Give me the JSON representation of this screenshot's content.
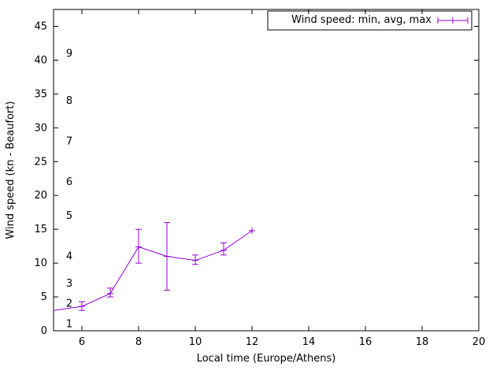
{
  "figure": {
    "background": "#ffffff",
    "axis_color": "#000000",
    "series_color": "#9400d3"
  },
  "legend": {
    "label": "Wind speed: min, avg, max"
  },
  "chart_data": {
    "type": "line",
    "title": "",
    "xlabel": "Local time (Europe/Athens)",
    "ylabel": "Wind speed (kn - Beaufort)",
    "xlim": [
      5,
      20
    ],
    "ylim": [
      0,
      47.5
    ],
    "x_ticks": [
      6,
      8,
      10,
      12,
      14,
      16,
      18,
      20
    ],
    "y_ticks": [
      0,
      5,
      10,
      15,
      20,
      25,
      30,
      35,
      40,
      45
    ],
    "beaufort_scale": [
      {
        "label": "1",
        "kn": 1
      },
      {
        "label": "2",
        "kn": 4
      },
      {
        "label": "3",
        "kn": 7
      },
      {
        "label": "4",
        "kn": 11
      },
      {
        "label": "5",
        "kn": 17
      },
      {
        "label": "6",
        "kn": 22
      },
      {
        "label": "7",
        "kn": 28
      },
      {
        "label": "8",
        "kn": 34
      },
      {
        "label": "9",
        "kn": 41
      }
    ],
    "grid": false,
    "legend_position": "top-right-inside-box",
    "series": [
      {
        "name": "Wind speed: min, avg, max",
        "color": "#9400d3",
        "style": "yerrorlines-plus-marker",
        "points": [
          {
            "t": 5,
            "avg": 3.0,
            "min": 3.0,
            "max": 3.0,
            "marker": false
          },
          {
            "t": 6,
            "avg": 3.6,
            "min": 3.0,
            "max": 4.3,
            "marker": true
          },
          {
            "t": 7,
            "avg": 5.5,
            "min": 5.0,
            "max": 6.3,
            "marker": true
          },
          {
            "t": 8,
            "avg": 12.4,
            "min": 10.0,
            "max": 15.0,
            "marker": true
          },
          {
            "t": 9,
            "avg": 11.0,
            "min": 6.0,
            "max": 16.0,
            "marker": true
          },
          {
            "t": 10,
            "avg": 10.4,
            "min": 9.8,
            "max": 11.2,
            "marker": true
          },
          {
            "t": 11,
            "avg": 11.9,
            "min": 11.2,
            "max": 13.0,
            "marker": true
          },
          {
            "t": 12,
            "avg": 14.8,
            "min": 14.8,
            "max": 14.8,
            "marker": true
          }
        ]
      }
    ]
  }
}
